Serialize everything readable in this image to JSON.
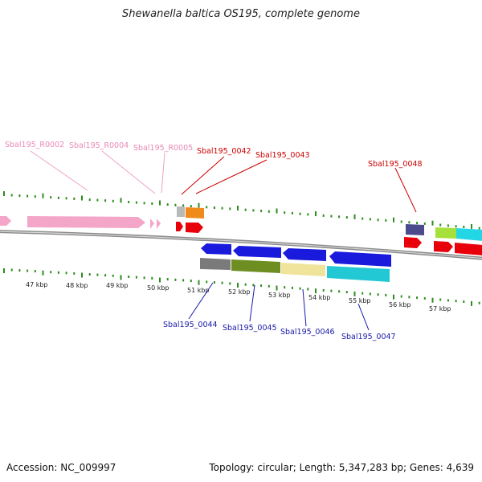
{
  "title": "Shewanella baltica OS195, complete genome",
  "accession": "Accession: NC_009997",
  "summary": "Topology: circular; Length: 5,347,283 bp; Genes: 4,639",
  "kbp_labels": [
    "47 kbp",
    "48 kbp",
    "49 kbp",
    "50 kbp",
    "51 kbp",
    "52 kbp",
    "53 kbp",
    "54 kbp",
    "55 kbp",
    "56 kbp",
    "57 kbp"
  ],
  "gene_labels": {
    "r0002": "Sbal195_R0002",
    "r0004": "Sbal195_R0004",
    "r0005": "Sbal195_R0005",
    "g0042": "Sbal195_0042",
    "g0043": "Sbal195_0043",
    "g0048": "Sbal195_0048",
    "g0044": "Sbal195_0044",
    "g0045": "Sbal195_0045",
    "g0046": "Sbal195_0046",
    "g0047": "Sbal195_0047"
  },
  "colors": {
    "rna": "#f4a6c8",
    "rna_label": "#e889b5",
    "forward_label": "#cc0000",
    "reverse_label": "#1a1aa8",
    "tick": "#2e8b1e",
    "backbone": "#7a7a7a"
  }
}
